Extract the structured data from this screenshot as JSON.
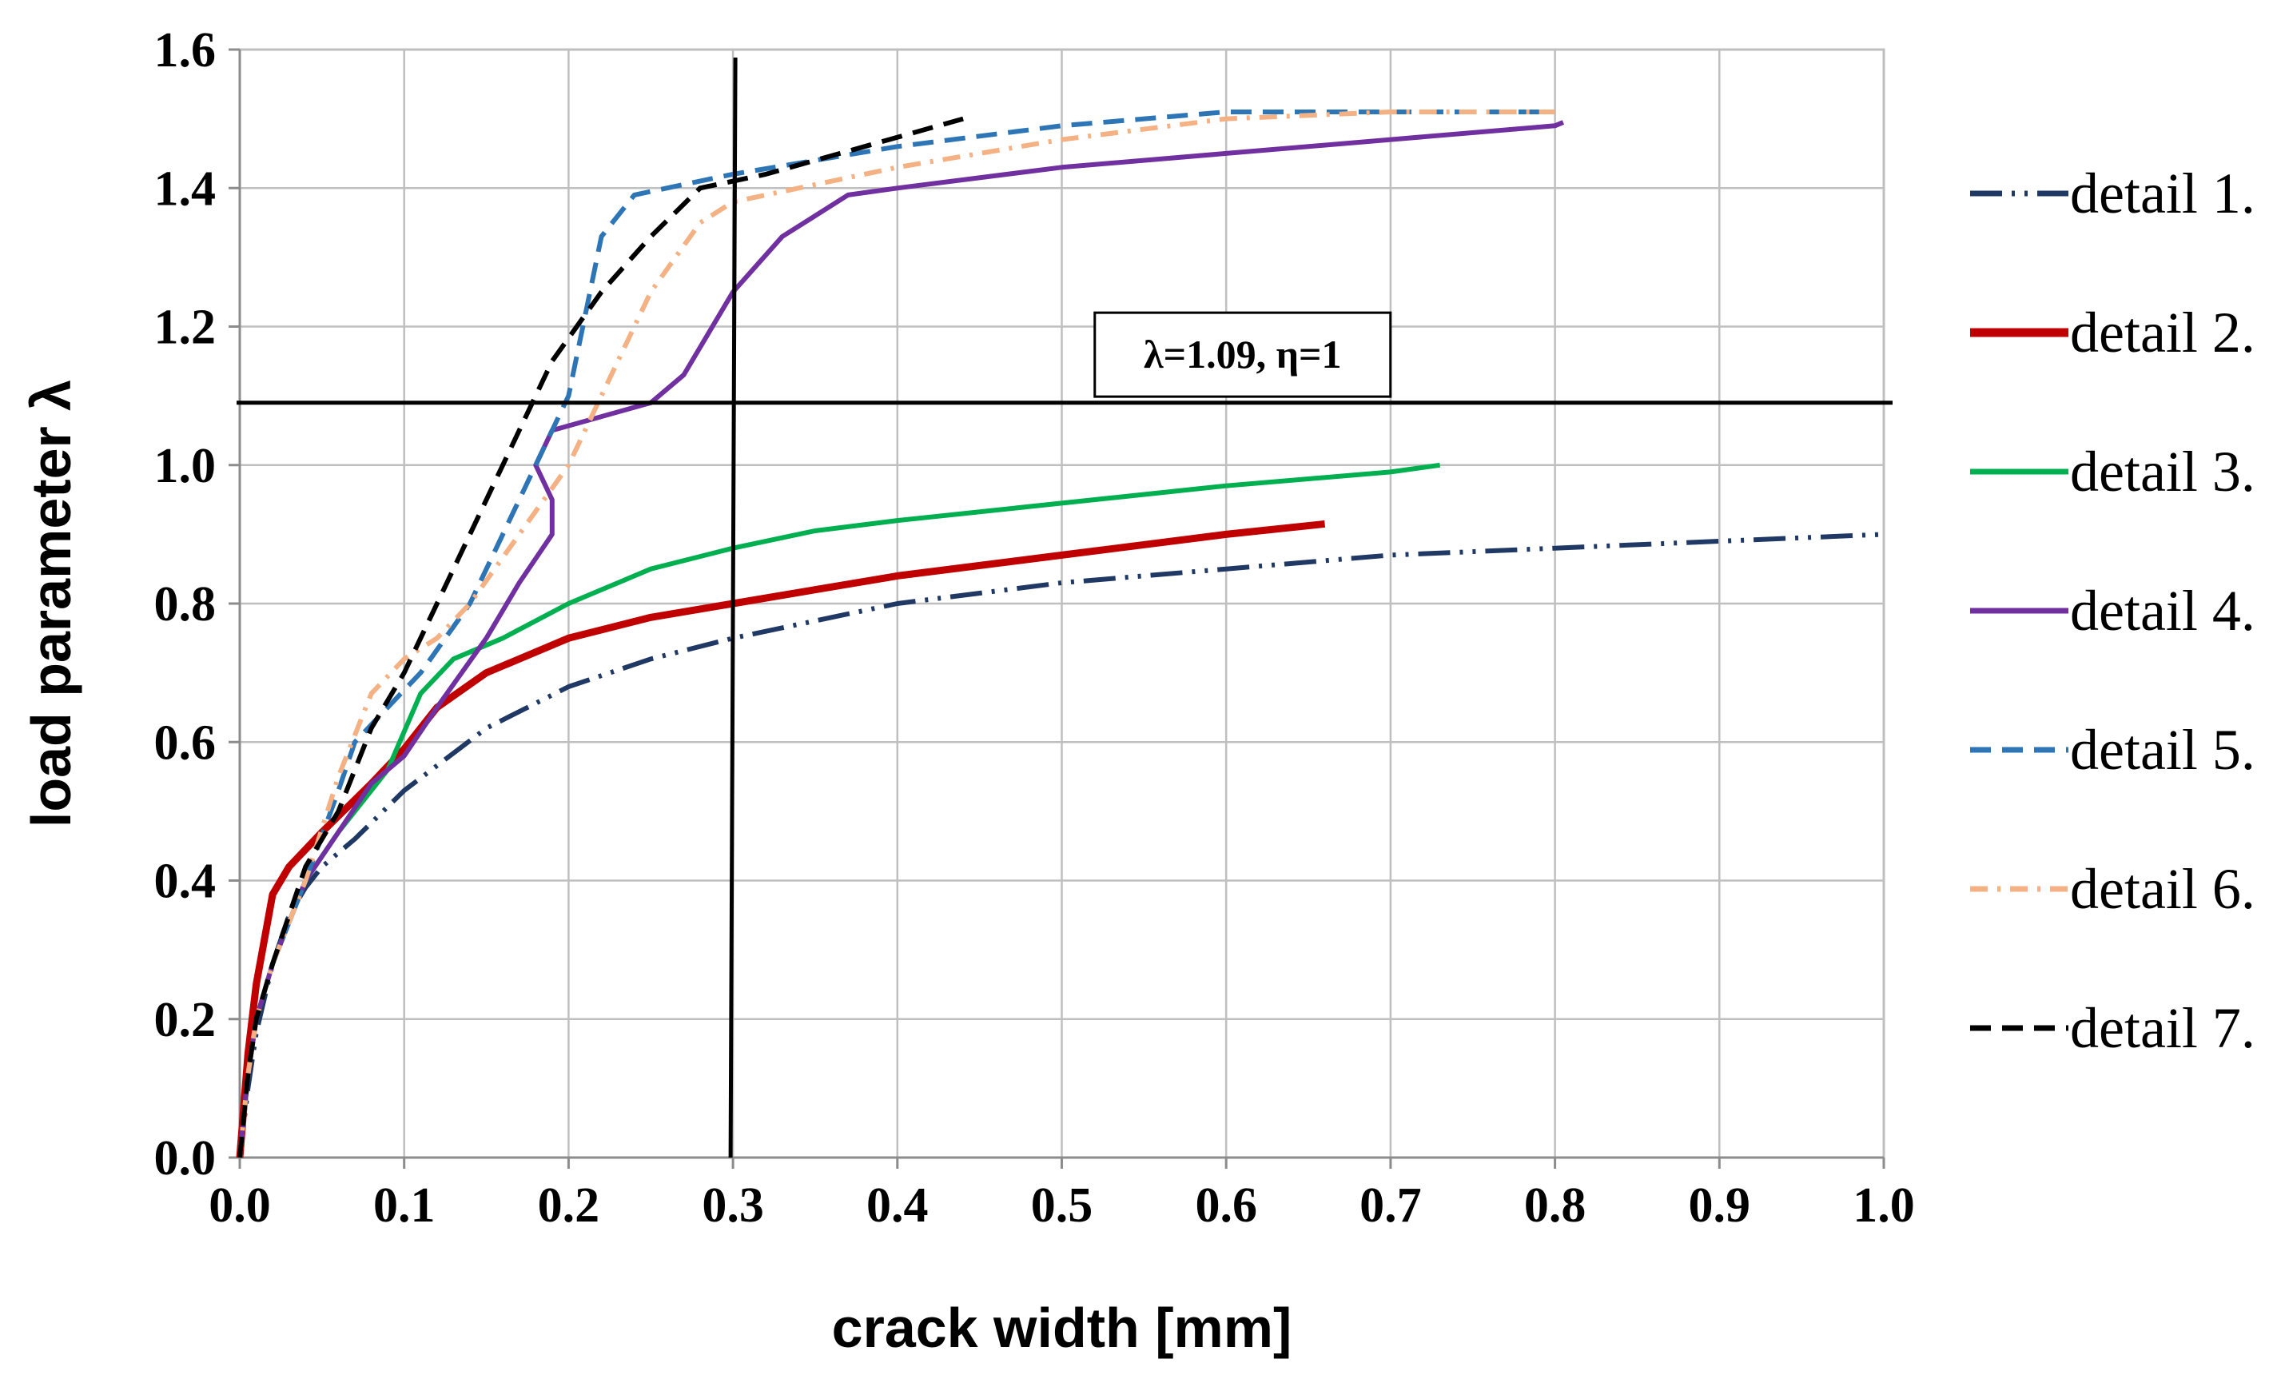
{
  "chart_data": {
    "type": "line",
    "title": "",
    "xlabel": "crack width [mm]",
    "ylabel": "load parameter λ",
    "xlim": [
      0.0,
      1.0
    ],
    "ylim": [
      0.0,
      1.6
    ],
    "xticks": [
      0.0,
      0.1,
      0.2,
      0.3,
      0.4,
      0.5,
      0.6,
      0.7,
      0.8,
      0.9,
      1.0
    ],
    "yticks": [
      0.0,
      0.2,
      0.4,
      0.6,
      0.8,
      1.0,
      1.2,
      1.4,
      1.6
    ],
    "x_tick_labels": [
      "0.0",
      "0.1",
      "0.2",
      "0.3",
      "0.4",
      "0.5",
      "0.6",
      "0.7",
      "0.8",
      "0.9",
      "1.0"
    ],
    "y_tick_labels": [
      "0.0",
      "0.2",
      "0.4",
      "0.6",
      "0.8",
      "1.0",
      "1.2",
      "1.4",
      "1.6"
    ],
    "grid": true,
    "legend_position": "right",
    "reference_lines": [
      {
        "orientation": "horizontal",
        "value": 1.09
      },
      {
        "orientation": "vertical",
        "value": 0.3
      }
    ],
    "annotation": {
      "text": "λ=1.09, η=1",
      "x": 0.61,
      "y": 1.16
    },
    "series": [
      {
        "name": "detail 1.",
        "color": "#1f3864",
        "dash": "dashdotdot",
        "x": [
          0,
          0.005,
          0.01,
          0.02,
          0.03,
          0.04,
          0.05,
          0.07,
          0.1,
          0.15,
          0.2,
          0.25,
          0.3,
          0.4,
          0.5,
          0.6,
          0.7,
          0.8,
          0.9,
          1.0
        ],
        "y": [
          0,
          0.1,
          0.18,
          0.28,
          0.35,
          0.39,
          0.42,
          0.46,
          0.53,
          0.62,
          0.68,
          0.72,
          0.75,
          0.8,
          0.83,
          0.85,
          0.87,
          0.88,
          0.89,
          0.9
        ]
      },
      {
        "name": "detail 2.",
        "color": "#c00000",
        "dash": "solid",
        "x": [
          0,
          0.005,
          0.01,
          0.02,
          0.03,
          0.05,
          0.08,
          0.1,
          0.12,
          0.15,
          0.2,
          0.25,
          0.3,
          0.4,
          0.5,
          0.6,
          0.66
        ],
        "y": [
          0,
          0.15,
          0.25,
          0.38,
          0.42,
          0.47,
          0.54,
          0.59,
          0.65,
          0.7,
          0.75,
          0.78,
          0.8,
          0.84,
          0.87,
          0.9,
          0.915
        ]
      },
      {
        "name": "detail 3.",
        "color": "#00b050",
        "dash": "solid",
        "x": [
          0,
          0.005,
          0.01,
          0.02,
          0.04,
          0.06,
          0.09,
          0.11,
          0.13,
          0.16,
          0.2,
          0.25,
          0.3,
          0.35,
          0.4,
          0.5,
          0.6,
          0.7,
          0.73
        ],
        "y": [
          0,
          0.12,
          0.2,
          0.28,
          0.4,
          0.47,
          0.56,
          0.67,
          0.72,
          0.75,
          0.8,
          0.85,
          0.88,
          0.905,
          0.92,
          0.945,
          0.97,
          0.99,
          1.0
        ]
      },
      {
        "name": "detail 4.",
        "color": "#7030a0",
        "dash": "solid",
        "x": [
          0,
          0.005,
          0.01,
          0.02,
          0.04,
          0.06,
          0.08,
          0.1,
          0.12,
          0.15,
          0.17,
          0.19,
          0.19,
          0.18,
          0.19,
          0.22,
          0.25,
          0.27,
          0.3,
          0.33,
          0.37,
          0.4,
          0.5,
          0.6,
          0.7,
          0.8,
          0.805
        ],
        "y": [
          0,
          0.12,
          0.2,
          0.28,
          0.4,
          0.47,
          0.54,
          0.58,
          0.65,
          0.75,
          0.83,
          0.9,
          0.95,
          1.0,
          1.05,
          1.07,
          1.09,
          1.13,
          1.25,
          1.33,
          1.39,
          1.4,
          1.43,
          1.45,
          1.47,
          1.49,
          1.495
        ]
      },
      {
        "name": "detail 5.",
        "color": "#2e75b6",
        "dash": "dashed",
        "x": [
          0,
          0.005,
          0.01,
          0.02,
          0.04,
          0.06,
          0.07,
          0.09,
          0.11,
          0.14,
          0.17,
          0.2,
          0.22,
          0.24,
          0.3,
          0.4,
          0.5,
          0.6,
          0.7,
          0.8
        ],
        "y": [
          0,
          0.12,
          0.2,
          0.28,
          0.4,
          0.53,
          0.6,
          0.65,
          0.7,
          0.8,
          0.95,
          1.1,
          1.33,
          1.39,
          1.42,
          1.46,
          1.49,
          1.51,
          1.51,
          1.51
        ]
      },
      {
        "name": "detail 6.",
        "color": "#f4b183",
        "dash": "dashdot",
        "x": [
          0,
          0.005,
          0.01,
          0.02,
          0.04,
          0.06,
          0.08,
          0.1,
          0.12,
          0.14,
          0.17,
          0.2,
          0.22,
          0.25,
          0.28,
          0.3,
          0.4,
          0.5,
          0.6,
          0.7,
          0.8
        ],
        "y": [
          0,
          0.12,
          0.2,
          0.28,
          0.4,
          0.55,
          0.67,
          0.72,
          0.75,
          0.8,
          0.9,
          1.0,
          1.1,
          1.25,
          1.35,
          1.38,
          1.43,
          1.47,
          1.5,
          1.51,
          1.51
        ]
      },
      {
        "name": "detail 7.",
        "color": "#000000",
        "dash": "dashed",
        "x": [
          0,
          0.005,
          0.01,
          0.02,
          0.04,
          0.06,
          0.08,
          0.1,
          0.13,
          0.16,
          0.19,
          0.22,
          0.25,
          0.28,
          0.32,
          0.38,
          0.44
        ],
        "y": [
          0,
          0.12,
          0.2,
          0.28,
          0.42,
          0.5,
          0.62,
          0.7,
          0.85,
          1.0,
          1.15,
          1.25,
          1.33,
          1.4,
          1.42,
          1.46,
          1.5
        ]
      }
    ]
  }
}
